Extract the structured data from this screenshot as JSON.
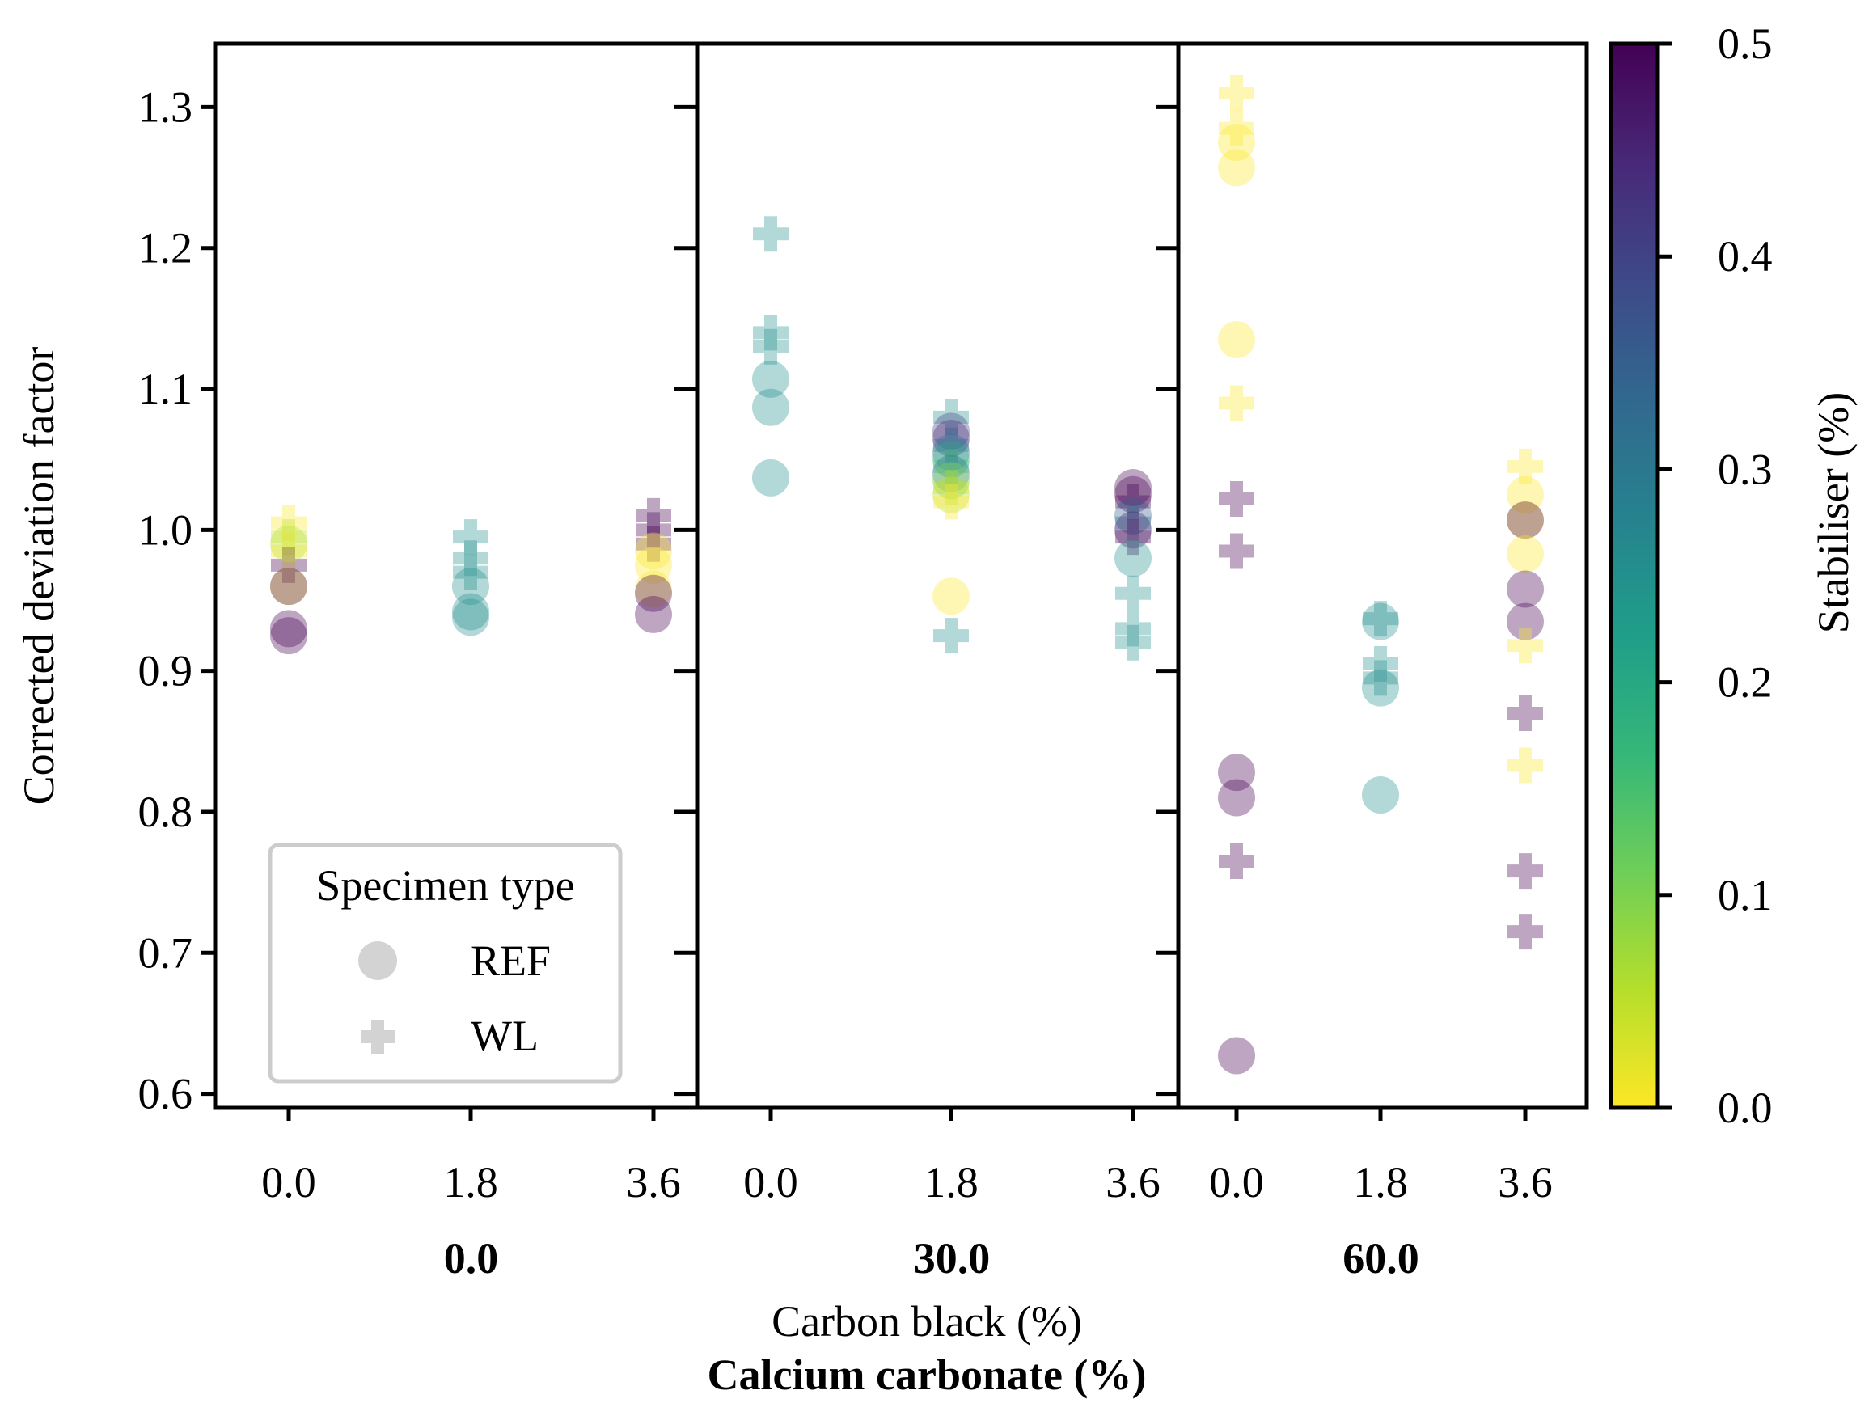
{
  "chart_data": {
    "type": "scatter",
    "ylabel": "Corrected deviation factor",
    "xlabel": "Carbon black (%)",
    "xlabel_outer": "Calcium carbonate (%)",
    "ylim": [
      0.59,
      1.345
    ],
    "yticks": [
      "0.6",
      "0.7",
      "0.8",
      "0.9",
      "1.0",
      "1.1",
      "1.2",
      "1.3"
    ],
    "x_categories": [
      "0.0",
      "1.8",
      "3.6"
    ],
    "colorbar": {
      "label": "Stabiliser (%)",
      "range": [
        0.0,
        0.5
      ],
      "ticks": [
        "0.0",
        "0.1",
        "0.2",
        "0.3",
        "0.4",
        "0.5"
      ],
      "colormap": [
        "#fde725",
        "#b5de2b",
        "#6ece58",
        "#35b779",
        "#1f9e89",
        "#26828e",
        "#31688e",
        "#3e4989",
        "#482878",
        "#440154"
      ]
    },
    "legend": {
      "title": "Specimen type",
      "entries": [
        {
          "label": "REF",
          "marker": "circle"
        },
        {
          "label": "WL",
          "marker": "plus"
        }
      ],
      "position": "lower-left"
    },
    "panels": [
      {
        "group": "0.0",
        "points": [
          {
            "x": 0,
            "y": 1.005,
            "type": "WL",
            "stab": 0.0
          },
          {
            "x": 0,
            "y": 0.995,
            "type": "WL",
            "stab": 0.05
          },
          {
            "x": 0,
            "y": 0.985,
            "type": "WL",
            "stab": 0.0
          },
          {
            "x": 0,
            "y": 0.975,
            "type": "WL",
            "stab": 0.5
          },
          {
            "x": 0,
            "y": 0.99,
            "type": "REF",
            "stab": 0.05
          },
          {
            "x": 0,
            "y": 0.96,
            "type": "REF",
            "stab": 0.0
          },
          {
            "x": 0,
            "y": 0.96,
            "type": "REF",
            "stab": 0.5
          },
          {
            "x": 0,
            "y": 0.93,
            "type": "REF",
            "stab": 0.5
          },
          {
            "x": 0,
            "y": 0.925,
            "type": "REF",
            "stab": 0.5
          },
          {
            "x": 1,
            "y": 0.995,
            "type": "WL",
            "stab": 0.25
          },
          {
            "x": 1,
            "y": 0.98,
            "type": "WL",
            "stab": 0.25
          },
          {
            "x": 1,
            "y": 0.97,
            "type": "WL",
            "stab": 0.25
          },
          {
            "x": 1,
            "y": 0.96,
            "type": "REF",
            "stab": 0.25
          },
          {
            "x": 1,
            "y": 0.942,
            "type": "REF",
            "stab": 0.25
          },
          {
            "x": 1,
            "y": 0.938,
            "type": "REF",
            "stab": 0.25
          },
          {
            "x": 2,
            "y": 1.01,
            "type": "WL",
            "stab": 0.5
          },
          {
            "x": 2,
            "y": 1.0,
            "type": "WL",
            "stab": 0.5
          },
          {
            "x": 2,
            "y": 0.99,
            "type": "WL",
            "stab": 0.5
          },
          {
            "x": 2,
            "y": 0.985,
            "type": "REF",
            "stab": 0.0
          },
          {
            "x": 2,
            "y": 0.975,
            "type": "REF",
            "stab": 0.0
          },
          {
            "x": 2,
            "y": 0.958,
            "type": "REF",
            "stab": 0.0
          },
          {
            "x": 2,
            "y": 0.955,
            "type": "REF",
            "stab": 0.5
          },
          {
            "x": 2,
            "y": 0.94,
            "type": "REF",
            "stab": 0.5
          }
        ]
      },
      {
        "group": "30.0",
        "points": [
          {
            "x": 0,
            "y": 1.21,
            "type": "WL",
            "stab": 0.25
          },
          {
            "x": 0,
            "y": 1.14,
            "type": "WL",
            "stab": 0.25
          },
          {
            "x": 0,
            "y": 1.13,
            "type": "WL",
            "stab": 0.25
          },
          {
            "x": 0,
            "y": 1.107,
            "type": "REF",
            "stab": 0.25
          },
          {
            "x": 0,
            "y": 1.087,
            "type": "REF",
            "stab": 0.25
          },
          {
            "x": 0,
            "y": 1.037,
            "type": "REF",
            "stab": 0.25
          },
          {
            "x": 1,
            "y": 1.08,
            "type": "WL",
            "stab": 0.25
          },
          {
            "x": 1,
            "y": 1.07,
            "type": "REF",
            "stab": 0.4
          },
          {
            "x": 1,
            "y": 1.065,
            "type": "REF",
            "stab": 0.45
          },
          {
            "x": 1,
            "y": 1.06,
            "type": "WL",
            "stab": 0.35
          },
          {
            "x": 1,
            "y": 1.055,
            "type": "REF",
            "stab": 0.3
          },
          {
            "x": 1,
            "y": 1.05,
            "type": "REF",
            "stab": 0.2
          },
          {
            "x": 1,
            "y": 1.045,
            "type": "WL",
            "stab": 0.15
          },
          {
            "x": 1,
            "y": 1.04,
            "type": "REF",
            "stab": 0.3
          },
          {
            "x": 1,
            "y": 1.035,
            "type": "REF",
            "stab": 0.1
          },
          {
            "x": 1,
            "y": 1.03,
            "type": "WL",
            "stab": 0.05
          },
          {
            "x": 1,
            "y": 1.025,
            "type": "REF",
            "stab": 0.05
          },
          {
            "x": 1,
            "y": 1.02,
            "type": "WL",
            "stab": 0.0
          },
          {
            "x": 1,
            "y": 0.953,
            "type": "REF",
            "stab": 0.0
          },
          {
            "x": 1,
            "y": 0.925,
            "type": "WL",
            "stab": 0.25
          },
          {
            "x": 2,
            "y": 1.03,
            "type": "REF",
            "stab": 0.5
          },
          {
            "x": 2,
            "y": 1.025,
            "type": "REF",
            "stab": 0.5
          },
          {
            "x": 2,
            "y": 1.02,
            "type": "WL",
            "stab": 0.5
          },
          {
            "x": 2,
            "y": 1.01,
            "type": "REF",
            "stab": 0.35
          },
          {
            "x": 2,
            "y": 1.005,
            "type": "WL",
            "stab": 0.3
          },
          {
            "x": 2,
            "y": 1.0,
            "type": "REF",
            "stab": 0.45
          },
          {
            "x": 2,
            "y": 0.995,
            "type": "WL",
            "stab": 0.5
          },
          {
            "x": 2,
            "y": 0.98,
            "type": "REF",
            "stab": 0.25
          },
          {
            "x": 2,
            "y": 0.955,
            "type": "WL",
            "stab": 0.25
          },
          {
            "x": 2,
            "y": 0.93,
            "type": "WL",
            "stab": 0.25
          },
          {
            "x": 2,
            "y": 0.92,
            "type": "WL",
            "stab": 0.25
          }
        ]
      },
      {
        "group": "60.0",
        "points": [
          {
            "x": 0,
            "y": 1.31,
            "type": "WL",
            "stab": 0.0
          },
          {
            "x": 0,
            "y": 1.285,
            "type": "WL",
            "stab": 0.0
          },
          {
            "x": 0,
            "y": 1.275,
            "type": "REF",
            "stab": 0.0
          },
          {
            "x": 0,
            "y": 1.257,
            "type": "REF",
            "stab": 0.0
          },
          {
            "x": 0,
            "y": 1.135,
            "type": "REF",
            "stab": 0.0
          },
          {
            "x": 0,
            "y": 1.09,
            "type": "WL",
            "stab": 0.0
          },
          {
            "x": 0,
            "y": 1.022,
            "type": "WL",
            "stab": 0.5
          },
          {
            "x": 0,
            "y": 0.985,
            "type": "WL",
            "stab": 0.5
          },
          {
            "x": 0,
            "y": 0.828,
            "type": "REF",
            "stab": 0.5
          },
          {
            "x": 0,
            "y": 0.81,
            "type": "REF",
            "stab": 0.5
          },
          {
            "x": 0,
            "y": 0.765,
            "type": "WL",
            "stab": 0.5
          },
          {
            "x": 0,
            "y": 0.627,
            "type": "REF",
            "stab": 0.5
          },
          {
            "x": 1,
            "y": 0.937,
            "type": "WL",
            "stab": 0.25
          },
          {
            "x": 1,
            "y": 0.935,
            "type": "REF",
            "stab": 0.25
          },
          {
            "x": 1,
            "y": 0.905,
            "type": "WL",
            "stab": 0.25
          },
          {
            "x": 1,
            "y": 0.895,
            "type": "WL",
            "stab": 0.25
          },
          {
            "x": 1,
            "y": 0.888,
            "type": "REF",
            "stab": 0.25
          },
          {
            "x": 1,
            "y": 0.812,
            "type": "REF",
            "stab": 0.25
          },
          {
            "x": 2,
            "y": 1.045,
            "type": "WL",
            "stab": 0.0
          },
          {
            "x": 2,
            "y": 1.025,
            "type": "REF",
            "stab": 0.0
          },
          {
            "x": 2,
            "y": 1.007,
            "type": "REF",
            "stab": 0.0
          },
          {
            "x": 2,
            "y": 1.007,
            "type": "REF",
            "stab": 0.5
          },
          {
            "x": 2,
            "y": 0.983,
            "type": "REF",
            "stab": 0.0
          },
          {
            "x": 2,
            "y": 0.958,
            "type": "REF",
            "stab": 0.5
          },
          {
            "x": 2,
            "y": 0.935,
            "type": "REF",
            "stab": 0.5
          },
          {
            "x": 2,
            "y": 0.918,
            "type": "WL",
            "stab": 0.0
          },
          {
            "x": 2,
            "y": 0.87,
            "type": "WL",
            "stab": 0.5
          },
          {
            "x": 2,
            "y": 0.833,
            "type": "WL",
            "stab": 0.0
          },
          {
            "x": 2,
            "y": 0.758,
            "type": "WL",
            "stab": 0.5
          },
          {
            "x": 2,
            "y": 0.715,
            "type": "WL",
            "stab": 0.5
          }
        ]
      }
    ]
  }
}
